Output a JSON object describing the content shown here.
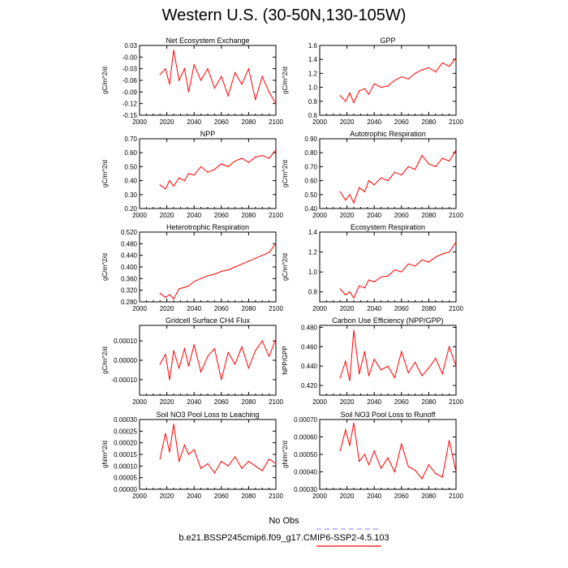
{
  "title": "Western U.S. (30-50N,130-105W)",
  "legend": {
    "obs_label": "No Obs",
    "obs_color": "#9999ff",
    "model_label": "b.e21.BSSP245cmip6.f09_g17.CMIP6-SSP2-4.5.103",
    "model_color": "#ff0000"
  },
  "chart_data": [
    {
      "type": "line",
      "title": "Net Ecosystem Exchange",
      "ylabel": "gC/m^2/d",
      "xlim": [
        2000,
        2100
      ],
      "ylim": [
        -0.15,
        0.03
      ],
      "xticks": [
        "2000",
        "2020",
        "2040",
        "2060",
        "2080",
        "2100"
      ],
      "yticks": [
        "0.03",
        "-0.00",
        "-0.03",
        "-0.06",
        "-0.09",
        "-0.12",
        "-0.15"
      ],
      "x": [
        2015,
        2019,
        2022,
        2025,
        2029,
        2033,
        2036,
        2040,
        2045,
        2050,
        2055,
        2060,
        2065,
        2070,
        2075,
        2080,
        2085,
        2090,
        2095,
        2100
      ],
      "series": [
        {
          "name": "model",
          "values": [
            -0.045,
            -0.03,
            -0.07,
            0.018,
            -0.06,
            -0.03,
            -0.09,
            -0.02,
            -0.06,
            -0.03,
            -0.08,
            -0.05,
            -0.1,
            -0.04,
            -0.07,
            -0.03,
            -0.11,
            -0.05,
            -0.09,
            -0.12
          ]
        }
      ]
    },
    {
      "type": "line",
      "title": "GPP",
      "ylabel": "gC/m^2/d",
      "xlim": [
        2000,
        2100
      ],
      "ylim": [
        0.6,
        1.6
      ],
      "xticks": [
        "2000",
        "2020",
        "2040",
        "2060",
        "2080",
        "2100"
      ],
      "yticks": [
        "1.6",
        "1.4",
        "1.2",
        "1.0",
        "0.8",
        "0.6"
      ],
      "x": [
        2015,
        2019,
        2022,
        2025,
        2029,
        2033,
        2036,
        2040,
        2045,
        2050,
        2055,
        2060,
        2065,
        2070,
        2075,
        2080,
        2085,
        2090,
        2095,
        2100
      ],
      "series": [
        {
          "name": "model",
          "values": [
            0.88,
            0.8,
            0.92,
            0.78,
            0.95,
            0.98,
            0.9,
            1.05,
            1.0,
            1.02,
            1.1,
            1.15,
            1.12,
            1.2,
            1.25,
            1.28,
            1.22,
            1.35,
            1.3,
            1.42
          ]
        }
      ]
    },
    {
      "type": "line",
      "title": "NPP",
      "ylabel": "gC/m^2/d",
      "xlim": [
        2000,
        2100
      ],
      "ylim": [
        0.2,
        0.7
      ],
      "xticks": [
        "2000",
        "2020",
        "2040",
        "2060",
        "2080",
        "2100"
      ],
      "yticks": [
        "0.70",
        "0.60",
        "0.50",
        "0.40",
        "0.30",
        "0.20"
      ],
      "x": [
        2015,
        2019,
        2022,
        2025,
        2029,
        2033,
        2036,
        2040,
        2045,
        2050,
        2055,
        2060,
        2065,
        2070,
        2075,
        2080,
        2085,
        2090,
        2095,
        2100
      ],
      "series": [
        {
          "name": "model",
          "values": [
            0.37,
            0.34,
            0.4,
            0.36,
            0.42,
            0.4,
            0.45,
            0.44,
            0.5,
            0.46,
            0.48,
            0.52,
            0.5,
            0.54,
            0.56,
            0.53,
            0.57,
            0.58,
            0.56,
            0.62
          ]
        }
      ]
    },
    {
      "type": "line",
      "title": "Autotrophic Respiration",
      "ylabel": "gC/m^2/d",
      "xlim": [
        2000,
        2100
      ],
      "ylim": [
        0.4,
        0.9
      ],
      "xticks": [
        "2000",
        "2020",
        "2040",
        "2060",
        "2080",
        "2100"
      ],
      "yticks": [
        "0.90",
        "0.80",
        "0.70",
        "0.60",
        "0.50",
        "0.40"
      ],
      "x": [
        2015,
        2019,
        2022,
        2025,
        2029,
        2033,
        2036,
        2040,
        2045,
        2050,
        2055,
        2060,
        2065,
        2070,
        2075,
        2080,
        2085,
        2090,
        2095,
        2100
      ],
      "series": [
        {
          "name": "model",
          "values": [
            0.52,
            0.46,
            0.5,
            0.44,
            0.55,
            0.52,
            0.6,
            0.57,
            0.62,
            0.6,
            0.66,
            0.64,
            0.7,
            0.68,
            0.78,
            0.72,
            0.7,
            0.76,
            0.74,
            0.82
          ]
        }
      ]
    },
    {
      "type": "line",
      "title": "Heterotrophic Respiration",
      "ylabel": "gC/m^2/d",
      "xlim": [
        2000,
        2100
      ],
      "ylim": [
        0.28,
        0.52
      ],
      "xticks": [
        "2000",
        "2020",
        "2040",
        "2060",
        "2080",
        "2100"
      ],
      "yticks": [
        "0.520",
        "0.480",
        "0.440",
        "0.400",
        "0.360",
        "0.320",
        "0.280"
      ],
      "x": [
        2015,
        2019,
        2022,
        2025,
        2029,
        2033,
        2036,
        2040,
        2045,
        2050,
        2055,
        2060,
        2065,
        2070,
        2075,
        2080,
        2085,
        2090,
        2095,
        2100
      ],
      "series": [
        {
          "name": "model",
          "values": [
            0.31,
            0.295,
            0.305,
            0.29,
            0.325,
            0.33,
            0.335,
            0.35,
            0.36,
            0.37,
            0.375,
            0.385,
            0.39,
            0.4,
            0.41,
            0.42,
            0.43,
            0.44,
            0.45,
            0.48
          ]
        }
      ]
    },
    {
      "type": "line",
      "title": "Ecosystem Respiration",
      "ylabel": "gC/m^2/d",
      "xlim": [
        2000,
        2100
      ],
      "ylim": [
        0.7,
        1.4
      ],
      "xticks": [
        "2000",
        "2020",
        "2040",
        "2060",
        "2080",
        "2100"
      ],
      "yticks": [
        "1.4",
        "1.2",
        "1.0",
        "0.8"
      ],
      "x": [
        2015,
        2019,
        2022,
        2025,
        2029,
        2033,
        2036,
        2040,
        2045,
        2050,
        2055,
        2060,
        2065,
        2070,
        2075,
        2080,
        2085,
        2090,
        2095,
        2100
      ],
      "series": [
        {
          "name": "model",
          "values": [
            0.83,
            0.77,
            0.8,
            0.74,
            0.86,
            0.84,
            0.92,
            0.9,
            0.95,
            0.96,
            1.02,
            1.0,
            1.08,
            1.06,
            1.12,
            1.1,
            1.15,
            1.18,
            1.2,
            1.3
          ]
        }
      ]
    },
    {
      "type": "line",
      "title": "Gridcell Surface CH4 Flux",
      "ylabel": "gC/m^2/d",
      "xlim": [
        2000,
        2100
      ],
      "ylim": [
        -0.00018,
        0.00018
      ],
      "xticks": [
        "2000",
        "2020",
        "2040",
        "2060",
        "2080",
        "2100"
      ],
      "yticks": [
        "0.00010",
        "0.00000",
        "-0.00010"
      ],
      "x": [
        2015,
        2019,
        2022,
        2025,
        2029,
        2033,
        2036,
        2040,
        2045,
        2050,
        2055,
        2060,
        2065,
        2070,
        2075,
        2080,
        2085,
        2090,
        2095,
        2100
      ],
      "series": [
        {
          "name": "model",
          "values": [
            -2e-05,
            3e-05,
            -0.0001,
            5e-05,
            -4e-05,
            6e-05,
            -3e-05,
            8e-05,
            -6e-05,
            2e-05,
            6e-05,
            -0.0001,
            4e-05,
            -2e-05,
            7e-05,
            -4e-05,
            5e-05,
            0.0001,
            2e-05,
            0.00011
          ]
        }
      ]
    },
    {
      "type": "line",
      "title": "Carbon Use Efficiency (NPP/GPP)",
      "ylabel": "NPP/GPP",
      "xlim": [
        2000,
        2100
      ],
      "ylim": [
        0.41,
        0.482
      ],
      "xticks": [
        "2000",
        "2020",
        "2040",
        "2060",
        "2080",
        "2100"
      ],
      "yticks": [
        "0.480",
        "0.460",
        "0.440",
        "0.420"
      ],
      "x": [
        2015,
        2019,
        2022,
        2025,
        2029,
        2033,
        2036,
        2040,
        2045,
        2050,
        2055,
        2060,
        2065,
        2070,
        2075,
        2080,
        2085,
        2090,
        2095,
        2100
      ],
      "series": [
        {
          "name": "model",
          "values": [
            0.428,
            0.445,
            0.425,
            0.477,
            0.432,
            0.455,
            0.43,
            0.447,
            0.436,
            0.44,
            0.428,
            0.455,
            0.433,
            0.444,
            0.43,
            0.438,
            0.448,
            0.432,
            0.46,
            0.44
          ]
        }
      ]
    },
    {
      "type": "line",
      "title": "Soil NO3 Pool Loss to Leaching",
      "ylabel": "gN/m^2/d",
      "xlim": [
        2000,
        2100
      ],
      "ylim": [
        0,
        0.0003
      ],
      "xticks": [
        "2000",
        "2020",
        "2040",
        "2060",
        "2080",
        "2100"
      ],
      "yticks": [
        "0.00030",
        "0.00025",
        "0.00020",
        "0.00015",
        "0.00010",
        "0.00005",
        "0.00000"
      ],
      "x": [
        2015,
        2019,
        2022,
        2025,
        2029,
        2033,
        2036,
        2040,
        2045,
        2050,
        2055,
        2060,
        2065,
        2070,
        2075,
        2080,
        2085,
        2090,
        2095,
        2100
      ],
      "series": [
        {
          "name": "model",
          "values": [
            0.00013,
            0.00024,
            0.00016,
            0.00028,
            0.00012,
            0.00019,
            0.00015,
            0.00017,
            9e-05,
            0.00011,
            7e-05,
            0.00012,
            0.0001,
            0.00014,
            9e-05,
            0.00012,
            0.0001,
            8e-05,
            0.00013,
            0.00011
          ]
        }
      ]
    },
    {
      "type": "line",
      "title": "Soil NO3 Pool Loss to Runoff",
      "ylabel": "gN/m^2/d",
      "xlim": [
        2000,
        2100
      ],
      "ylim": [
        0.0003,
        0.0007
      ],
      "xticks": [
        "2000",
        "2020",
        "2040",
        "2060",
        "2080",
        "2100"
      ],
      "yticks": [
        "0.00070",
        "0.00060",
        "0.00050",
        "0.00040",
        "0.00030"
      ],
      "x": [
        2015,
        2019,
        2022,
        2025,
        2029,
        2033,
        2036,
        2040,
        2045,
        2050,
        2055,
        2060,
        2065,
        2070,
        2075,
        2080,
        2085,
        2090,
        2095,
        2100
      ],
      "series": [
        {
          "name": "model",
          "values": [
            0.00052,
            0.00064,
            0.00055,
            0.00068,
            0.00046,
            0.0005,
            0.00044,
            0.00052,
            0.00042,
            0.00048,
            0.0004,
            0.00056,
            0.00043,
            0.00041,
            0.00036,
            0.00044,
            0.00039,
            0.00037,
            0.00058,
            0.0004
          ]
        }
      ]
    }
  ]
}
